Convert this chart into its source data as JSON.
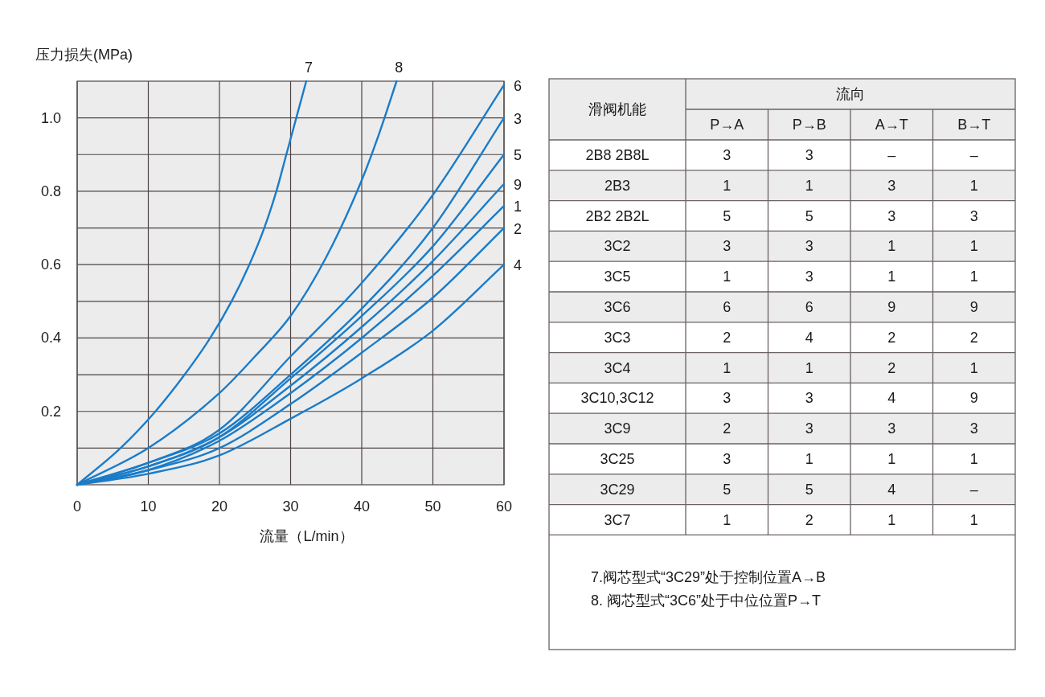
{
  "chart_data": [
    {
      "type": "line",
      "xlabel": "流量（L/min）",
      "ylabel": "压力损失(MPa)",
      "xlim": [
        0,
        60
      ],
      "ylim": [
        0,
        1.1
      ],
      "xticks": [
        0,
        10,
        20,
        30,
        40,
        50,
        60
      ],
      "yticks": [
        {
          "value": 0.1,
          "label": null
        },
        0.2,
        {
          "value": 0.3,
          "label": null
        },
        0.4,
        {
          "value": 0.5,
          "label": null
        },
        0.6,
        {
          "value": 0.7,
          "label": null
        },
        0.8,
        {
          "value": 0.9,
          "label": null
        },
        {
          "value": 1.0,
          "label": "1.0"
        }
      ],
      "grid": true,
      "x": [
        0,
        10,
        20,
        30,
        40,
        50,
        60
      ],
      "series": [
        {
          "name": "7",
          "color": "#1a7cc9",
          "x": [
            0,
            6.1,
            11.0,
            15.1,
            18.7,
            21.7,
            24.2,
            26.3,
            28.0,
            29.4,
            30.8,
            32.2
          ],
          "values": [
            0,
            0.1,
            0.2,
            0.3,
            0.4,
            0.5,
            0.6,
            0.7,
            0.8,
            0.9,
            1.0,
            1.1
          ]
        },
        {
          "name": "8",
          "color": "#1a7cc9",
          "x": [
            0,
            10,
            20,
            25,
            30,
            35,
            40,
            42.5,
            44.9
          ],
          "values": [
            0,
            0.1,
            0.25,
            0.35,
            0.46,
            0.62,
            0.83,
            0.96,
            1.1
          ]
        },
        {
          "name": "6",
          "color": "#1a7cc9",
          "values": [
            0,
            0.06,
            0.15,
            0.35,
            0.55,
            0.79,
            1.09
          ]
        },
        {
          "name": "3",
          "color": "#1a7cc9",
          "values": [
            0,
            0.06,
            0.14,
            0.3,
            0.48,
            0.7,
            1.0
          ]
        },
        {
          "name": "5",
          "color": "#1a7cc9",
          "values": [
            0,
            0.05,
            0.13,
            0.29,
            0.46,
            0.65,
            0.9
          ]
        },
        {
          "name": "9",
          "color": "#1a7cc9",
          "values": [
            0,
            0.05,
            0.13,
            0.27,
            0.43,
            0.61,
            0.82
          ]
        },
        {
          "name": "1",
          "color": "#1a7cc9",
          "values": [
            0,
            0.04,
            0.12,
            0.25,
            0.4,
            0.57,
            0.76
          ]
        },
        {
          "name": "2",
          "color": "#1a7cc9",
          "values": [
            0,
            0.04,
            0.1,
            0.22,
            0.36,
            0.51,
            0.7
          ]
        },
        {
          "name": "4",
          "color": "#1a7cc9",
          "values": [
            0,
            0.03,
            0.08,
            0.18,
            0.29,
            0.42,
            0.6
          ]
        }
      ]
    },
    {
      "type": "other",
      "title": "流向",
      "ylabel": "滑阀机能",
      "categories": [
        "P→A",
        "P→B",
        "A→T",
        "B→T"
      ],
      "y_categories": [
        "2B8 2B8L",
        "2B3",
        "2B2 2B2L",
        "3C2",
        "3C5",
        "3C6",
        "3C3",
        "3C4",
        "3C10,3C12",
        "3C9",
        "3C25",
        "3C29",
        "3C7"
      ],
      "cell_labels": [
        [
          "3",
          "3",
          "–",
          "–"
        ],
        [
          "1",
          "1",
          "3",
          "1"
        ],
        [
          "5",
          "5",
          "3",
          "3"
        ],
        [
          "3",
          "3",
          "1",
          "1"
        ],
        [
          "1",
          "3",
          "1",
          "1"
        ],
        [
          "6",
          "6",
          "9",
          "9"
        ],
        [
          "2",
          "4",
          "2",
          "2"
        ],
        [
          "1",
          "1",
          "2",
          "1"
        ],
        [
          "3",
          "3",
          "4",
          "9"
        ],
        [
          "2",
          "3",
          "3",
          "3"
        ],
        [
          "3",
          "1",
          "1",
          "1"
        ],
        [
          "5",
          "5",
          "4",
          "–"
        ],
        [
          "1",
          "2",
          "1",
          "1"
        ]
      ],
      "annotations": [
        "7.阀芯型式“3C29”处于控制位置A→B",
        "8. 阀芯型式“3C6”处于中位位置P→T"
      ]
    }
  ]
}
